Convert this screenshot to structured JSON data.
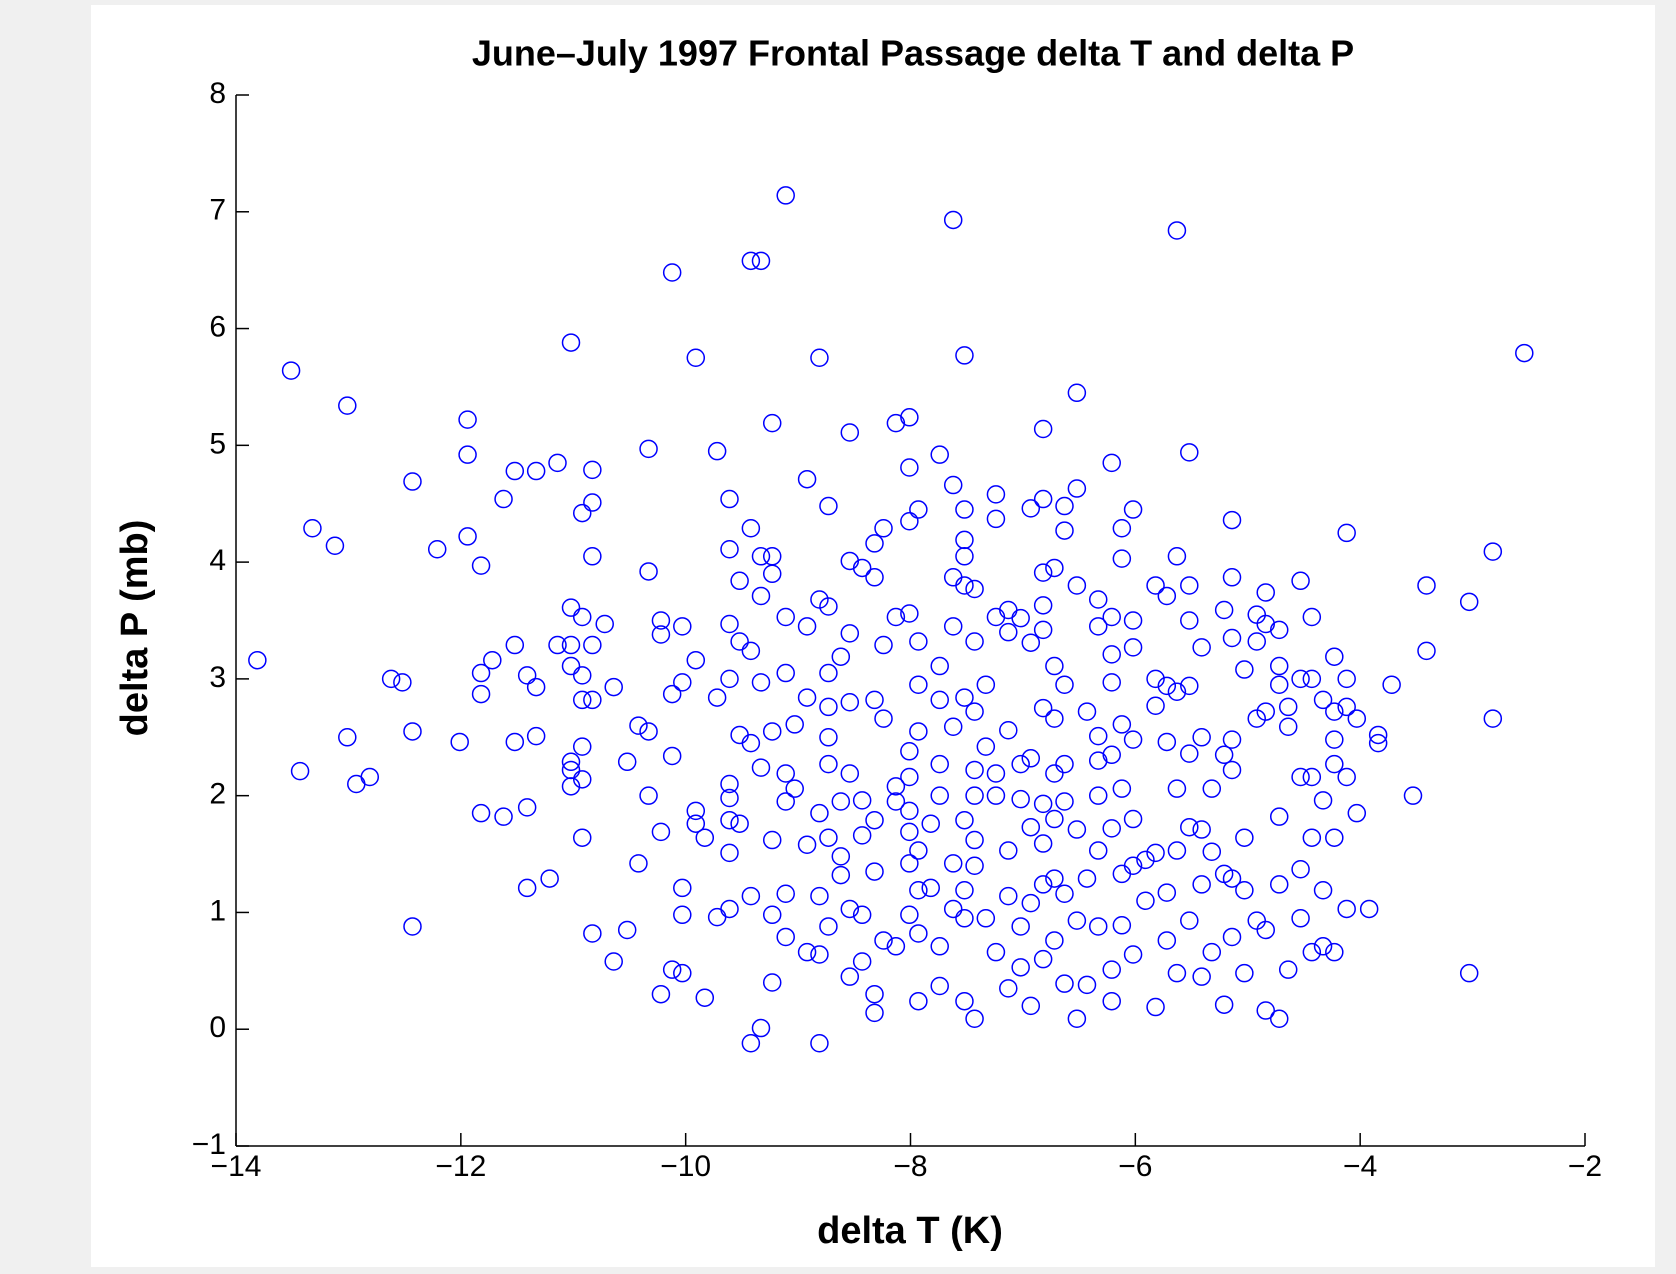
{
  "chart_data": {
    "type": "scatter",
    "title": "June–July 1997 Frontal Passage delta T and delta P",
    "xlabel": "delta T (K)",
    "ylabel": "delta P (mb)",
    "color": "#0000ff",
    "grid": false,
    "xlim": [
      -14,
      -2
    ],
    "ylim": [
      -1,
      8
    ],
    "xticks": [
      {
        "value": -14,
        "label": "−14"
      },
      {
        "value": -12,
        "label": "−12"
      },
      {
        "value": -10,
        "label": "−10"
      },
      {
        "value": -8,
        "label": "−8"
      },
      {
        "value": -6,
        "label": "−6"
      },
      {
        "value": -4,
        "label": "−4"
      },
      {
        "value": -2,
        "label": "−2"
      }
    ],
    "yticks": [
      {
        "value": -1,
        "label": "−1"
      },
      0,
      1,
      2,
      3,
      4,
      5,
      6,
      7,
      8
    ],
    "x": [
      -13.81,
      -13.51,
      -13.43,
      -13.32,
      -13.12,
      -13.01,
      -13.01,
      -12.93,
      -12.81,
      -12.62,
      -12.52,
      -12.43,
      -12.43,
      -12.43,
      -12.21,
      -12.01,
      -11.94,
      -11.94,
      -11.94,
      -11.82,
      -11.82,
      -11.82,
      -11.82,
      -11.72,
      -11.62,
      -11.62,
      -11.52,
      -11.52,
      -11.52,
      -11.41,
      -11.41,
      -11.41,
      -11.33,
      -11.33,
      -11.33,
      -11.21,
      -11.14,
      -11.14,
      -11.02,
      -11.02,
      -11.02,
      -11.02,
      -11.02,
      -11.02,
      -11.02,
      -10.92,
      -10.92,
      -10.92,
      -10.92,
      -10.92,
      -10.92,
      -10.92,
      -10.83,
      -10.83,
      -10.83,
      -10.83,
      -10.83,
      -10.83,
      -10.72,
      -10.64,
      -10.64,
      -10.52,
      -10.52,
      -10.42,
      -10.42,
      -10.33,
      -10.33,
      -10.33,
      -10.33,
      -10.22,
      -10.22,
      -10.22,
      -10.22,
      -10.12,
      -10.12,
      -10.12,
      -10.12,
      -10.03,
      -10.03,
      -10.03,
      -10.03,
      -10.03,
      -9.91,
      -9.91,
      -9.91,
      -9.91,
      -9.83,
      -9.83,
      -9.72,
      -9.72,
      -9.72,
      -9.61,
      -9.61,
      -9.61,
      -9.61,
      -9.61,
      -9.61,
      -9.61,
      -9.61,
      -9.61,
      -9.52,
      -9.52,
      -9.52,
      -9.52,
      -9.42,
      -9.42,
      -9.42,
      -9.42,
      -9.42,
      -9.42,
      -9.33,
      -9.33,
      -9.33,
      -9.33,
      -9.33,
      -9.33,
      -9.23,
      -9.23,
      -9.23,
      -9.23,
      -9.23,
      -9.23,
      -9.23,
      -9.11,
      -9.11,
      -9.11,
      -9.11,
      -9.11,
      -9.11,
      -9.11,
      -9.03,
      -9.03,
      -8.92,
      -8.92,
      -8.92,
      -8.92,
      -8.92,
      -8.81,
      -8.81,
      -8.81,
      -8.81,
      -8.81,
      -8.81,
      -8.73,
      -8.73,
      -8.73,
      -8.73,
      -8.73,
      -8.73,
      -8.73,
      -8.73,
      -8.62,
      -8.62,
      -8.62,
      -8.62,
      -8.54,
      -8.54,
      -8.54,
      -8.54,
      -8.54,
      -8.54,
      -8.54,
      -8.43,
      -8.43,
      -8.43,
      -8.43,
      -8.43,
      -8.32,
      -8.32,
      -8.32,
      -8.32,
      -8.32,
      -8.32,
      -8.32,
      -8.24,
      -8.24,
      -8.24,
      -8.24,
      -8.13,
      -8.13,
      -8.13,
      -8.13,
      -8.13,
      -8.01,
      -8.01,
      -8.01,
      -8.01,
      -8.01,
      -8.01,
      -8.01,
      -8.01,
      -8.01,
      -8.01,
      -7.93,
      -7.93,
      -7.93,
      -7.93,
      -7.93,
      -7.93,
      -7.93,
      -7.93,
      -7.82,
      -7.82,
      -7.74,
      -7.74,
      -7.74,
      -7.74,
      -7.74,
      -7.74,
      -7.74,
      -7.62,
      -7.62,
      -7.62,
      -7.62,
      -7.62,
      -7.62,
      -7.62,
      -7.52,
      -7.52,
      -7.52,
      -7.52,
      -7.52,
      -7.52,
      -7.52,
      -7.52,
      -7.52,
      -7.52,
      -7.43,
      -7.43,
      -7.43,
      -7.43,
      -7.43,
      -7.43,
      -7.43,
      -7.43,
      -7.33,
      -7.33,
      -7.33,
      -7.24,
      -7.24,
      -7.24,
      -7.24,
      -7.24,
      -7.24,
      -7.13,
      -7.13,
      -7.13,
      -7.13,
      -7.13,
      -7.13,
      -7.02,
      -7.02,
      -7.02,
      -7.02,
      -7.02,
      -6.93,
      -6.93,
      -6.93,
      -6.93,
      -6.93,
      -6.93,
      -6.82,
      -6.82,
      -6.82,
      -6.82,
      -6.82,
      -6.82,
      -6.82,
      -6.82,
      -6.82,
      -6.82,
      -6.72,
      -6.72,
      -6.72,
      -6.72,
      -6.72,
      -6.72,
      -6.72,
      -6.63,
      -6.63,
      -6.63,
      -6.63,
      -6.63,
      -6.63,
      -6.63,
      -6.52,
      -6.52,
      -6.52,
      -6.52,
      -6.52,
      -6.52,
      -6.43,
      -6.43,
      -6.43,
      -6.33,
      -6.33,
      -6.33,
      -6.33,
      -6.33,
      -6.33,
      -6.33,
      -6.21,
      -6.21,
      -6.21,
      -6.21,
      -6.21,
      -6.21,
      -6.21,
      -6.21,
      -6.12,
      -6.12,
      -6.12,
      -6.12,
      -6.12,
      -6.12,
      -6.02,
      -6.02,
      -6.02,
      -6.02,
      -6.02,
      -6.02,
      -6.02,
      -5.91,
      -5.91,
      -5.82,
      -5.82,
      -5.82,
      -5.82,
      -5.82,
      -5.72,
      -5.72,
      -5.72,
      -5.72,
      -5.72,
      -5.63,
      -5.63,
      -5.63,
      -5.63,
      -5.63,
      -5.63,
      -5.52,
      -5.52,
      -5.52,
      -5.52,
      -5.52,
      -5.52,
      -5.52,
      -5.41,
      -5.41,
      -5.41,
      -5.41,
      -5.41,
      -5.32,
      -5.32,
      -5.32,
      -5.21,
      -5.21,
      -5.21,
      -5.21,
      -5.14,
      -5.14,
      -5.14,
      -5.14,
      -5.14,
      -5.14,
      -5.14,
      -5.03,
      -5.03,
      -5.03,
      -5.03,
      -4.92,
      -4.92,
      -4.92,
      -4.92,
      -4.84,
      -4.84,
      -4.84,
      -4.84,
      -4.84,
      -4.72,
      -4.72,
      -4.72,
      -4.72,
      -4.72,
      -4.72,
      -4.64,
      -4.64,
      -4.64,
      -4.53,
      -4.53,
      -4.53,
      -4.53,
      -4.53,
      -4.43,
      -4.43,
      -4.43,
      -4.43,
      -4.43,
      -4.33,
      -4.33,
      -4.33,
      -4.33,
      -4.23,
      -4.23,
      -4.23,
      -4.23,
      -4.23,
      -4.23,
      -4.12,
      -4.12,
      -4.12,
      -4.12,
      -4.12,
      -4.03,
      -4.03,
      -3.92,
      -3.84,
      -3.84,
      -3.72,
      -3.53,
      -3.41,
      -3.41,
      -3.03,
      -3.03,
      -2.82,
      -2.82,
      -2.54
    ],
    "y": [
      3.16,
      5.64,
      2.21,
      4.29,
      4.14,
      5.34,
      2.5,
      2.1,
      2.16,
      3.0,
      2.97,
      4.69,
      2.55,
      0.88,
      4.11,
      2.46,
      5.22,
      4.92,
      4.22,
      3.97,
      3.05,
      2.87,
      1.85,
      3.16,
      4.54,
      1.82,
      3.29,
      4.78,
      2.46,
      3.03,
      1.9,
      1.21,
      4.78,
      2.93,
      2.51,
      1.29,
      4.85,
      3.29,
      5.88,
      3.61,
      3.29,
      3.11,
      2.29,
      2.22,
      2.08,
      4.42,
      3.53,
      3.03,
      2.82,
      2.42,
      2.14,
      1.64,
      4.79,
      4.51,
      4.05,
      3.29,
      2.82,
      0.82,
      3.47,
      2.93,
      0.58,
      2.29,
      0.85,
      2.6,
      1.42,
      4.97,
      3.92,
      2.55,
      2.0,
      3.5,
      3.38,
      1.69,
      0.3,
      6.48,
      2.87,
      2.34,
      0.51,
      3.45,
      2.97,
      1.21,
      0.98,
      0.48,
      5.75,
      3.16,
      1.87,
      1.76,
      1.64,
      0.27,
      4.95,
      2.84,
      0.96,
      4.54,
      4.11,
      3.47,
      3.0,
      2.1,
      1.98,
      1.79,
      1.51,
      1.03,
      3.84,
      3.32,
      2.52,
      1.76,
      6.58,
      4.29,
      3.24,
      2.45,
      1.14,
      -0.12,
      6.58,
      4.05,
      3.71,
      2.97,
      2.24,
      0.01,
      4.05,
      3.9,
      5.19,
      2.55,
      1.62,
      0.98,
      0.4,
      7.14,
      3.53,
      3.05,
      2.19,
      1.95,
      1.16,
      0.79,
      2.61,
      2.06,
      4.71,
      3.45,
      2.84,
      1.58,
      0.66,
      5.75,
      3.68,
      1.85,
      1.14,
      0.64,
      -0.12,
      4.48,
      3.62,
      3.05,
      2.76,
      2.5,
      2.27,
      1.64,
      0.88,
      3.19,
      1.95,
      1.48,
      1.32,
      5.11,
      4.01,
      3.39,
      2.8,
      2.19,
      1.03,
      0.45,
      3.95,
      1.96,
      1.66,
      0.98,
      0.58,
      4.16,
      3.87,
      2.82,
      1.79,
      1.35,
      0.3,
      0.14,
      4.29,
      3.29,
      2.66,
      0.76,
      5.19,
      3.53,
      2.08,
      1.95,
      0.71,
      5.24,
      4.81,
      4.35,
      3.56,
      2.38,
      2.16,
      1.87,
      1.69,
      1.42,
      0.98,
      4.45,
      3.32,
      2.95,
      2.55,
      1.53,
      1.19,
      0.82,
      0.24,
      1.76,
      1.21,
      4.92,
      3.11,
      2.82,
      2.27,
      2.0,
      0.71,
      0.37,
      6.93,
      4.66,
      3.87,
      3.45,
      2.59,
      1.42,
      1.03,
      5.77,
      4.45,
      4.19,
      4.05,
      3.8,
      2.84,
      1.79,
      1.19,
      0.95,
      0.24,
      3.77,
      3.32,
      2.72,
      2.22,
      2.0,
      1.62,
      1.4,
      0.09,
      2.95,
      2.42,
      0.95,
      4.58,
      4.37,
      3.53,
      2.19,
      2.0,
      0.66,
      3.59,
      3.4,
      2.56,
      1.53,
      1.14,
      0.35,
      3.52,
      2.27,
      1.97,
      0.88,
      0.53,
      4.46,
      3.31,
      2.32,
      1.73,
      1.08,
      0.2,
      5.14,
      4.54,
      3.91,
      3.63,
      3.42,
      2.75,
      1.93,
      1.59,
      1.24,
      0.6,
      3.95,
      3.11,
      2.66,
      2.19,
      1.8,
      1.29,
      0.76,
      4.48,
      4.27,
      2.95,
      2.27,
      1.95,
      1.16,
      0.39,
      5.45,
      4.63,
      3.8,
      1.71,
      0.93,
      0.09,
      2.72,
      1.29,
      0.38,
      3.68,
      3.45,
      2.51,
      2.3,
      2.0,
      1.53,
      0.88,
      4.85,
      3.53,
      3.21,
      2.97,
      2.35,
      1.72,
      0.51,
      0.24,
      4.29,
      4.03,
      2.61,
      2.06,
      1.33,
      0.89,
      4.45,
      3.5,
      3.27,
      2.48,
      1.8,
      1.4,
      0.64,
      1.45,
      1.1,
      3.8,
      3.0,
      2.77,
      1.51,
      0.19,
      3.71,
      2.94,
      2.46,
      1.17,
      0.76,
      6.84,
      4.05,
      2.89,
      2.06,
      1.53,
      0.48,
      4.94,
      3.8,
      3.5,
      2.94,
      2.36,
      1.73,
      0.93,
      3.27,
      2.5,
      1.71,
      1.24,
      0.45,
      2.06,
      1.52,
      0.66,
      3.59,
      2.35,
      1.33,
      0.21,
      4.36,
      3.87,
      3.35,
      2.48,
      2.22,
      1.29,
      0.79,
      3.08,
      1.64,
      1.19,
      0.48,
      3.55,
      3.32,
      2.66,
      0.93,
      3.74,
      3.47,
      2.72,
      0.85,
      0.16,
      3.42,
      3.11,
      2.95,
      1.82,
      1.24,
      0.09,
      2.76,
      2.59,
      0.51,
      3.84,
      3.0,
      2.16,
      1.37,
      0.95,
      3.53,
      3.0,
      2.16,
      1.64,
      0.66,
      2.82,
      1.96,
      1.19,
      0.71,
      3.19,
      2.72,
      2.48,
      2.27,
      1.64,
      0.66,
      4.25,
      3.0,
      2.76,
      2.16,
      1.03,
      2.66,
      1.85,
      1.03,
      2.52,
      2.45,
      2.95,
      2.0,
      3.8,
      3.24,
      3.66,
      0.48,
      4.09,
      2.66,
      5.79
    ]
  }
}
